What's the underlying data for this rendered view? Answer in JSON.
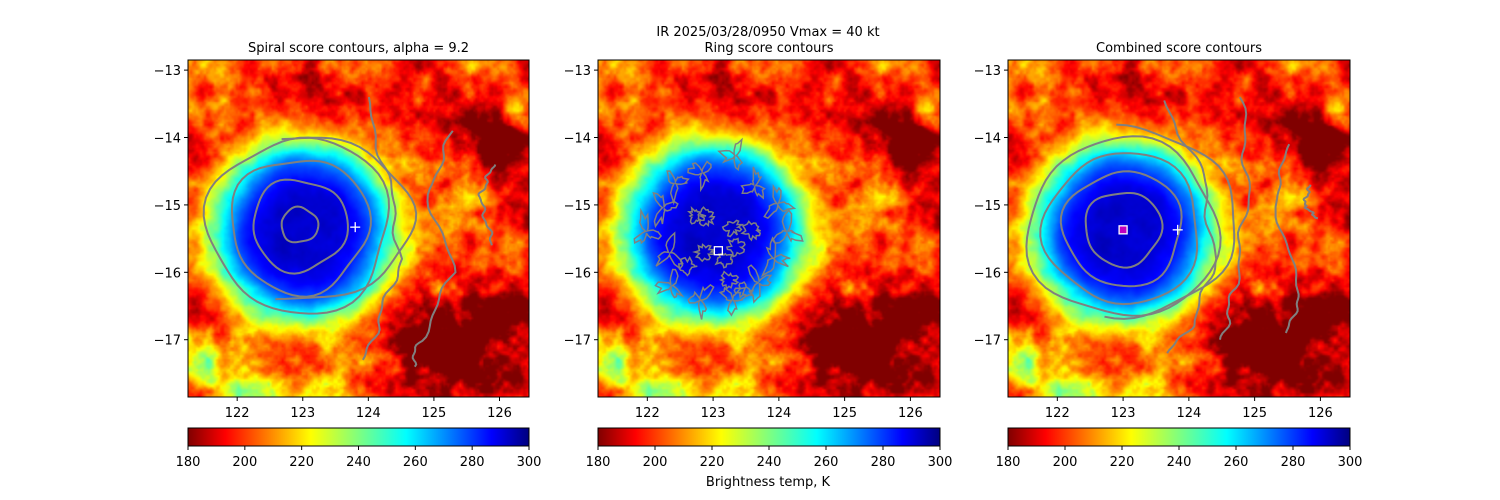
{
  "figure": {
    "suptitle_line1": "IR  2025/03/28/0950    Vmax = 40 kt",
    "colorbar_label": "Brightness temp, K"
  },
  "chart_data": [
    {
      "type": "heatmap",
      "title": "Spiral score contours, alpha =  9.2",
      "xlim": [
        121.25,
        126.45
      ],
      "ylim": [
        -17.85,
        -12.85
      ],
      "xticks": [
        122,
        123,
        124,
        125,
        126
      ],
      "yticks": [
        -13,
        -14,
        -15,
        -16,
        -17
      ],
      "colormap": "jet",
      "colorbar": {
        "min": 180,
        "max": 300,
        "ticks": [
          180,
          200,
          220,
          240,
          260,
          280,
          300
        ]
      },
      "contour_color": "#808080",
      "markers": [
        {
          "symbol": "plus",
          "lon": 123.8,
          "lat": -15.33,
          "color": "#ffffff"
        }
      ]
    },
    {
      "type": "heatmap",
      "title": "Ring score contours",
      "xlim": [
        121.25,
        126.45
      ],
      "ylim": [
        -17.85,
        -12.85
      ],
      "xticks": [
        122,
        123,
        124,
        125,
        126
      ],
      "yticks": [
        -13,
        -14,
        -15,
        -16,
        -17
      ],
      "colormap": "jet",
      "colorbar": {
        "min": 180,
        "max": 300,
        "ticks": [
          180,
          200,
          220,
          240,
          260,
          280,
          300
        ]
      },
      "contour_color": "#808080",
      "markers": [
        {
          "symbol": "square",
          "lon": 123.08,
          "lat": -15.68,
          "color": "#ffffff"
        }
      ]
    },
    {
      "type": "heatmap",
      "title": "Combined score contours",
      "xlim": [
        121.25,
        126.45
      ],
      "ylim": [
        -17.85,
        -12.85
      ],
      "xticks": [
        122,
        123,
        124,
        125,
        126
      ],
      "yticks": [
        -13,
        -14,
        -15,
        -16,
        -17
      ],
      "colormap": "jet",
      "colorbar": {
        "min": 180,
        "max": 300,
        "ticks": [
          180,
          200,
          220,
          240,
          260,
          280,
          300
        ]
      },
      "contour_color": "#808080",
      "markers": [
        {
          "symbol": "plus",
          "lon": 123.83,
          "lat": -15.37,
          "color": "#ffffff"
        },
        {
          "symbol": "square",
          "lon": 123.0,
          "lat": -15.37,
          "color": "#c000c0"
        }
      ]
    }
  ]
}
